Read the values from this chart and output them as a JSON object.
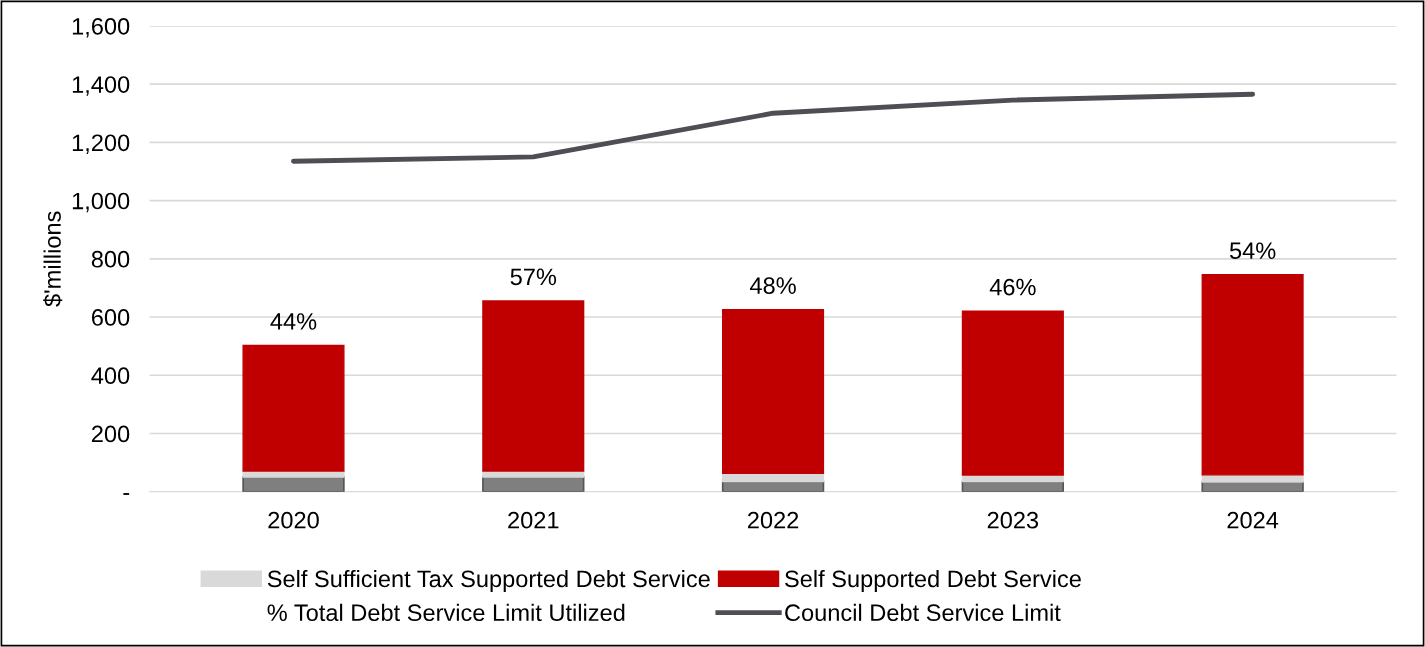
{
  "chart_data": {
    "type": "bar",
    "stacked": true,
    "ylabel": "$'millions",
    "categories": [
      "2020",
      "2021",
      "2022",
      "2023",
      "2024"
    ],
    "series": [
      {
        "color": "#7f7f7f",
        "values": [
          50,
          50,
          35,
          35,
          33
        ]
      },
      {
        "name": "Self Sufficient Tax Supported Debt Service",
        "color": "#d9d9d9",
        "values": [
          21,
          21,
          28,
          22,
          25
        ]
      },
      {
        "name": "Self Supported Debt Service",
        "color": "#c00000",
        "values": [
          431,
          584,
          562,
          563,
          687
        ]
      },
      {
        "name": "Council Debt Service Limit",
        "type": "line",
        "color": "#4d4f55",
        "values": [
          1135,
          1150,
          1300,
          1345,
          1365
        ]
      }
    ],
    "annotations": [
      {
        "text": "44%",
        "x": "2020",
        "y": 502
      },
      {
        "text": "57%",
        "x": "2021",
        "y": 655
      },
      {
        "text": "48%",
        "x": "2022",
        "y": 625
      },
      {
        "text": "46%",
        "x": "2023",
        "y": 620
      },
      {
        "text": "54%",
        "x": "2024",
        "y": 745
      },
      "% Total Debt Service Limit Utilized"
    ],
    "ylim": [
      0,
      1600
    ],
    "yticks": [
      {
        "value": 0,
        "label": "-"
      },
      {
        "value": 200,
        "label": "200"
      },
      {
        "value": 400,
        "label": "400"
      },
      {
        "value": 600,
        "label": "600"
      },
      {
        "value": 800,
        "label": "800"
      },
      {
        "value": 1000,
        "label": "1,000"
      },
      {
        "value": 1200,
        "label": "1,200"
      },
      {
        "value": 1400,
        "label": "1,400"
      },
      {
        "value": 1600,
        "label": "1,600"
      }
    ],
    "grid": "y",
    "legend": "bottom"
  }
}
